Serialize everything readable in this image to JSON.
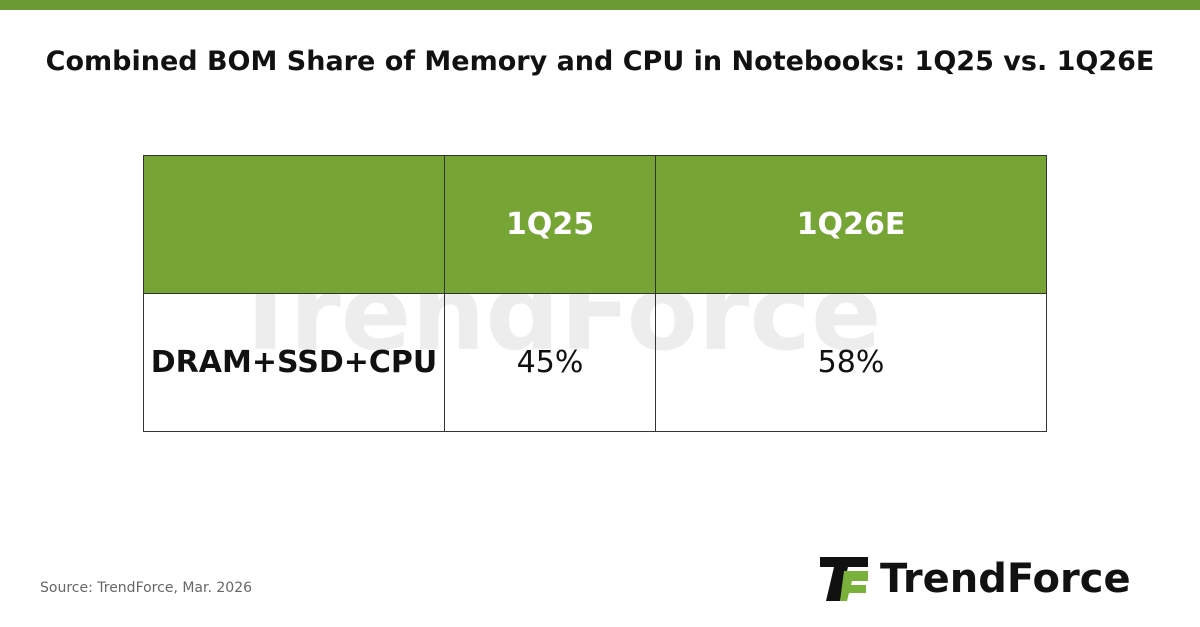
{
  "title": "Combined BOM Share of Memory and CPU in Notebooks: 1Q25 vs. 1Q26E",
  "table": {
    "header": [
      "1Q25",
      "1Q26E"
    ],
    "rows": [
      [
        "DRAM+SSD+CPU",
        "45%",
        "58%"
      ]
    ]
  },
  "watermark": "TrendForce",
  "source": "Source: TrendForce, Mar. 2026",
  "logo": "TrendForce"
}
